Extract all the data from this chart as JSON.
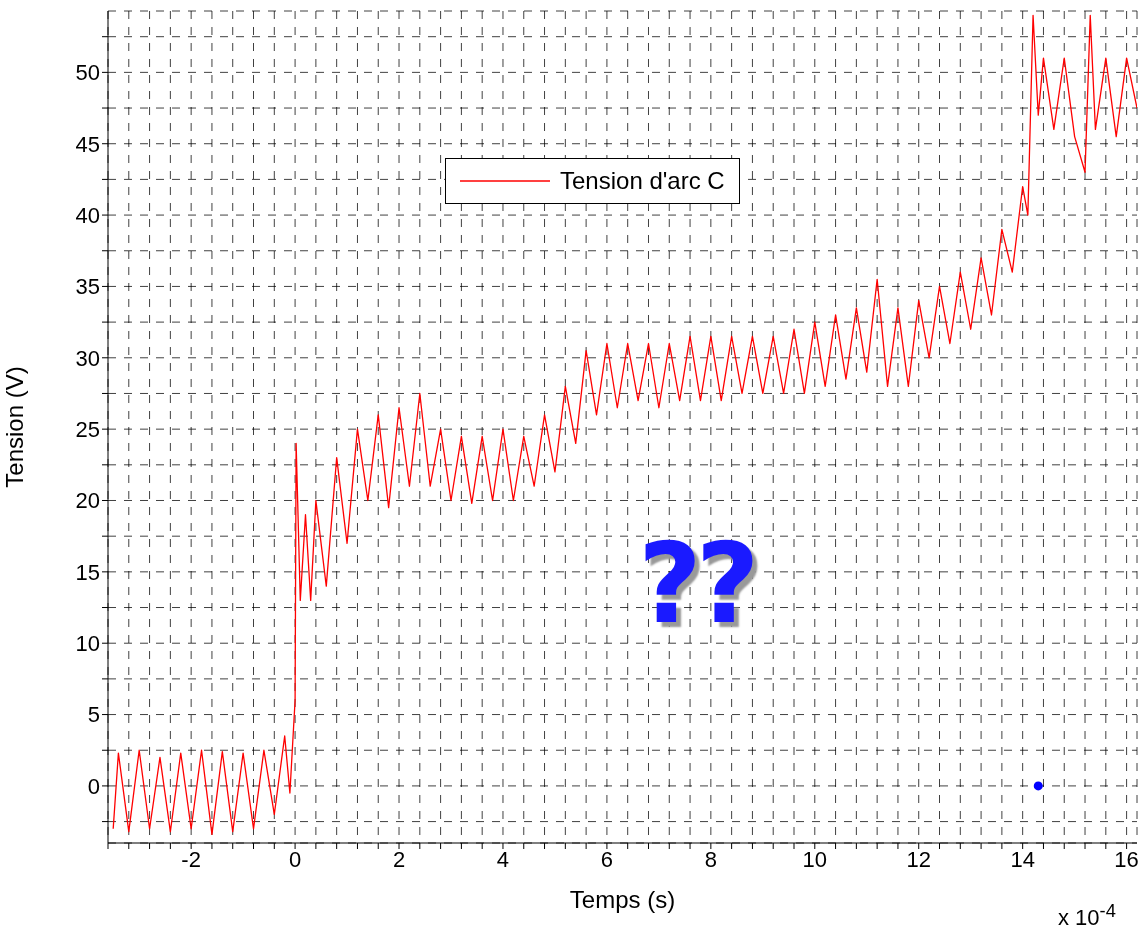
{
  "chart_data": {
    "type": "line",
    "xlabel": "Temps (s)",
    "ylabel": "Tension (V)",
    "xlim": [
      -3.6,
      16.2
    ],
    "ylim": [
      -4,
      54.3
    ],
    "xticks": [
      {
        "value": -3.6,
        "label": null
      },
      {
        "value": -3.2,
        "label": null
      },
      {
        "value": -2.8,
        "label": null
      },
      {
        "value": -2.4,
        "label": null
      },
      -2,
      {
        "value": -1.6,
        "label": null
      },
      {
        "value": -1.2,
        "label": null
      },
      {
        "value": -0.8,
        "label": null
      },
      {
        "value": -0.4,
        "label": null
      },
      0,
      {
        "value": 0.4,
        "label": null
      },
      {
        "value": 0.8,
        "label": null
      },
      {
        "value": 1.2,
        "label": null
      },
      {
        "value": 1.6,
        "label": null
      },
      2,
      {
        "value": 2.4,
        "label": null
      },
      {
        "value": 2.8,
        "label": null
      },
      {
        "value": 3.2,
        "label": null
      },
      {
        "value": 3.6,
        "label": null
      },
      4,
      {
        "value": 4.4,
        "label": null
      },
      {
        "value": 4.8,
        "label": null
      },
      {
        "value": 5.2,
        "label": null
      },
      {
        "value": 5.6,
        "label": null
      },
      6,
      {
        "value": 6.4,
        "label": null
      },
      {
        "value": 6.8,
        "label": null
      },
      {
        "value": 7.2,
        "label": null
      },
      {
        "value": 7.6,
        "label": null
      },
      8,
      {
        "value": 8.4,
        "label": null
      },
      {
        "value": 8.8,
        "label": null
      },
      {
        "value": 9.2,
        "label": null
      },
      {
        "value": 9.6,
        "label": null
      },
      10,
      {
        "value": 10.4,
        "label": null
      },
      {
        "value": 10.8,
        "label": null
      },
      {
        "value": 11.2,
        "label": null
      },
      {
        "value": 11.6,
        "label": null
      },
      12,
      {
        "value": 12.4,
        "label": null
      },
      {
        "value": 12.8,
        "label": null
      },
      {
        "value": 13.2,
        "label": null
      },
      {
        "value": 13.6,
        "label": null
      },
      14,
      {
        "value": 14.4,
        "label": null
      },
      {
        "value": 14.8,
        "label": null
      },
      {
        "value": 15.2,
        "label": null
      },
      {
        "value": 15.6,
        "label": null
      },
      16
    ],
    "yticks": [
      {
        "value": -2.5,
        "label": null
      },
      0,
      {
        "value": 2.5,
        "label": null
      },
      5,
      {
        "value": 7.5,
        "label": null
      },
      10,
      {
        "value": 12.5,
        "label": null
      },
      15,
      {
        "value": 17.5,
        "label": null
      },
      20,
      {
        "value": 22.5,
        "label": null
      },
      25,
      {
        "value": 27.5,
        "label": null
      },
      30,
      {
        "value": 32.5,
        "label": null
      },
      35,
      {
        "value": 37.5,
        "label": null
      },
      40,
      {
        "value": 42.5,
        "label": null
      },
      45,
      {
        "value": 47.5,
        "label": null
      },
      50,
      {
        "value": 52.5,
        "label": null
      }
    ],
    "grid": true,
    "line_style": "solid",
    "marker": "none",
    "legend": "top",
    "annotations": [
      "??",
      "x 10$^{-4}$"
    ],
    "series": [
      {
        "name": "Tension d'arc C",
        "color": "#ff0000",
        "x": [
          -3.5,
          -3.4,
          -3.2,
          -3.0,
          -2.8,
          -2.6,
          -2.4,
          -2.2,
          -2.0,
          -1.8,
          -1.6,
          -1.4,
          -1.2,
          -1.0,
          -0.8,
          -0.6,
          -0.4,
          -0.2,
          -0.1,
          0,
          0.02,
          0.1,
          0.2,
          0.3,
          0.4,
          0.6,
          0.8,
          1.0,
          1.2,
          1.4,
          1.6,
          1.8,
          2.0,
          2.2,
          2.4,
          2.6,
          2.8,
          3.0,
          3.2,
          3.4,
          3.6,
          3.8,
          4.0,
          4.2,
          4.4,
          4.6,
          4.8,
          5.0,
          5.2,
          5.4,
          5.6,
          5.8,
          6.0,
          6.2,
          6.4,
          6.6,
          6.8,
          7.0,
          7.2,
          7.4,
          7.6,
          7.8,
          8.0,
          8.2,
          8.4,
          8.6,
          8.8,
          9.0,
          9.2,
          9.4,
          9.6,
          9.8,
          10.0,
          10.2,
          10.4,
          10.6,
          10.8,
          11.0,
          11.2,
          11.4,
          11.6,
          11.8,
          12.0,
          12.2,
          12.4,
          12.6,
          12.8,
          13.0,
          13.2,
          13.4,
          13.6,
          13.8,
          14.0,
          14.1,
          14.2,
          14.3,
          14.4,
          14.6,
          14.8,
          15.0,
          15.2,
          15.3,
          15.4,
          15.6,
          15.8,
          16.0,
          16.2
        ],
        "values": [
          -3,
          2.3,
          -3.2,
          2.5,
          -3,
          2,
          -3.2,
          2.3,
          -3,
          2.5,
          -3.4,
          2.4,
          -3.2,
          2.3,
          -3,
          2.5,
          -2,
          3.5,
          -0.5,
          6,
          24,
          13,
          19,
          13,
          20,
          14,
          23,
          17,
          25,
          20,
          26,
          19.5,
          26.5,
          21,
          27.5,
          21,
          25,
          20,
          24.5,
          19.8,
          24.5,
          20,
          25,
          20,
          24.5,
          21,
          26,
          22,
          28,
          24,
          30.5,
          26,
          31,
          26.5,
          31,
          27,
          31,
          26.5,
          31,
          27,
          31.5,
          27,
          31.5,
          27,
          31.5,
          27.5,
          31.5,
          27.5,
          31.5,
          27.5,
          32,
          27.5,
          32.5,
          28,
          33,
          28.5,
          33.5,
          29,
          35.5,
          28,
          33.5,
          28,
          34,
          30,
          35,
          31,
          36,
          32,
          37,
          33,
          39,
          36,
          42,
          40,
          54,
          47,
          51,
          46,
          51,
          45.5,
          43,
          54,
          46,
          51,
          45.5,
          51,
          47.5
        ]
      },
      {
        "type": "scatter",
        "color": "#0000ff",
        "marker": "circle",
        "x": [
          14.3
        ],
        "values": [
          0
        ]
      }
    ]
  }
}
